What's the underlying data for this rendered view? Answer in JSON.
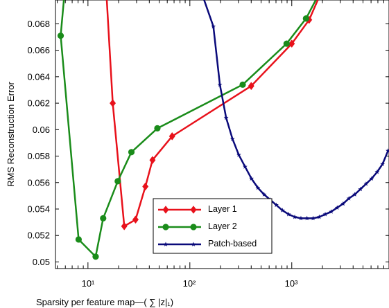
{
  "chart_data": {
    "type": "line",
    "xlabel": "Sparsity per feature map—( ∑ |z|₁)",
    "ylabel": "RMS Reconstruction Error",
    "xscale": "log",
    "xlim": [
      4.8,
      9000
    ],
    "ylim": [
      0.0495,
      0.0698
    ],
    "x_tick_labels": [
      "10¹",
      "10²",
      "10³"
    ],
    "y_ticks": [
      0.05,
      0.052,
      0.054,
      0.056,
      0.058,
      0.06,
      0.062,
      0.064,
      0.066,
      0.068
    ],
    "y_tick_labels": [
      "0.05",
      "0.052",
      "0.054",
      "0.056",
      "0.058",
      "0.06",
      "0.062",
      "0.064",
      "0.066",
      "0.068"
    ],
    "grid": false,
    "legend_position": "lower-center",
    "series": [
      {
        "name": "Layer 1",
        "color": "#e8111b",
        "marker": "diamond",
        "x": [
          15.3,
          17.5,
          22.7,
          29.3,
          36.6,
          43,
          67,
          400,
          1000,
          1480,
          1800
        ],
        "y": [
          0.0698,
          0.062,
          0.0527,
          0.0532,
          0.0557,
          0.0577,
          0.0595,
          0.0633,
          0.0665,
          0.0683,
          0.0698
        ]
      },
      {
        "name": "Layer 2",
        "color": "#1a8c1a",
        "marker": "circle",
        "x": [
          5.8,
          5.4,
          8.1,
          11.9,
          14.1,
          19.6,
          26.7,
          48,
          330,
          890,
          1380,
          1720
        ],
        "y": [
          0.0698,
          0.0671,
          0.0517,
          0.0504,
          0.0533,
          0.0561,
          0.0583,
          0.0601,
          0.0634,
          0.0665,
          0.0684,
          0.0698
        ]
      },
      {
        "name": "Patch-based",
        "color": "#0a0a7a",
        "marker": "star",
        "x": [
          138,
          170,
          197,
          227,
          262,
          302,
          348,
          402,
          465,
          535,
          615,
          705,
          810,
          930,
          1070,
          1230,
          1410,
          1620,
          1860,
          2130,
          2440,
          2790,
          3190,
          3640,
          4150,
          4720,
          5360,
          6080,
          6880,
          7780,
          8800
        ],
        "y": [
          0.0698,
          0.0678,
          0.0634,
          0.0609,
          0.0593,
          0.0581,
          0.0572,
          0.0563,
          0.0556,
          0.0551,
          0.0547,
          0.0543,
          0.0539,
          0.0536,
          0.0534,
          0.0533,
          0.0533,
          0.0533,
          0.0534,
          0.0536,
          0.0538,
          0.0541,
          0.0544,
          0.0548,
          0.0551,
          0.0555,
          0.0559,
          0.0563,
          0.0568,
          0.0574,
          0.0584
        ]
      }
    ]
  }
}
